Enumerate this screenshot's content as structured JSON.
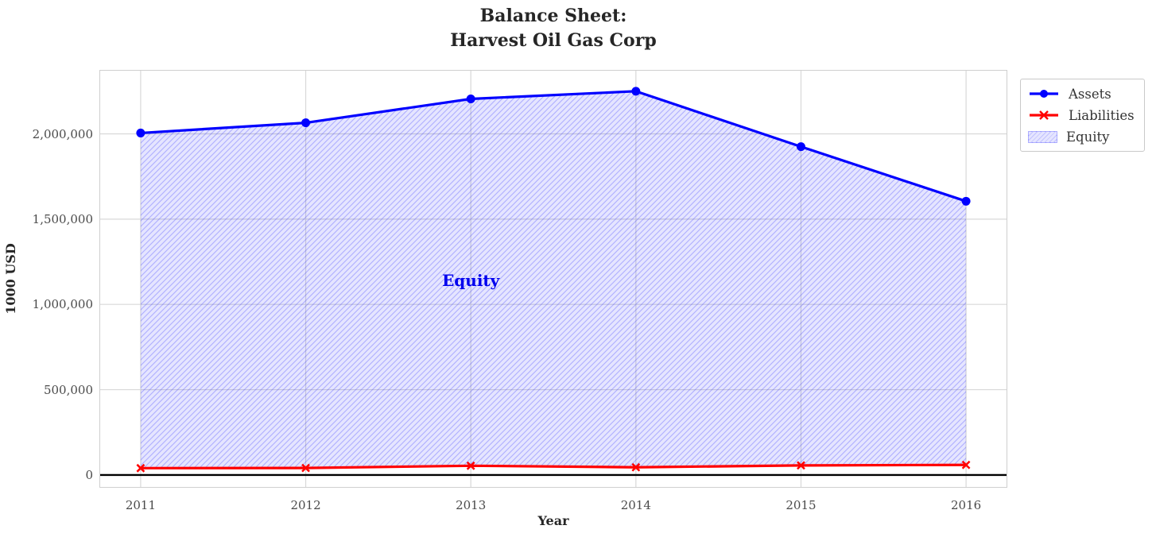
{
  "title": "Balance Sheet:\nHarvest Oil Gas Corp",
  "chart_data": {
    "type": "line",
    "title": "Balance Sheet:\nHarvest Oil Gas Corp",
    "xlabel": "Year",
    "ylabel": "1000 USD",
    "x": [
      2011,
      2012,
      2013,
      2014,
      2015,
      2016
    ],
    "series": [
      {
        "name": "Assets",
        "color": "#0000ff",
        "marker": "circle",
        "values": [
          2005000,
          2065000,
          2205000,
          2250000,
          1925000,
          1605000
        ]
      },
      {
        "name": "Liabilities",
        "color": "#ff0000",
        "marker": "x",
        "values": [
          40000,
          41000,
          54000,
          45000,
          56000,
          59000
        ]
      }
    ],
    "fill_between": {
      "label": "Equity",
      "upper": "Assets",
      "lower": "Liabilities",
      "hatch": "/",
      "fill_color": "rgba(0,0,255,0.10)",
      "hatch_color": "rgba(0,0,255,0.24)"
    },
    "annotation": {
      "text": "Equity",
      "x": 2013,
      "y": 1140000,
      "color": "#0000ee"
    },
    "x_ticks": [
      2011,
      2012,
      2013,
      2014,
      2015,
      2016
    ],
    "y_ticks": [
      0,
      500000,
      1000000,
      1500000,
      2000000
    ],
    "y_tick_labels": [
      "0",
      "500,000",
      "1,000,000",
      "1,500,000",
      "2,000,000"
    ],
    "xlim": [
      2010.75,
      2016.25
    ],
    "ylim": [
      -75000,
      2375000
    ],
    "grid": true,
    "grid_color": "#d8d8d8",
    "zero_line_color": "#000000",
    "frame_color": "#cfcfcf",
    "legend": {
      "position": "top-right-outside",
      "entries": [
        "Assets",
        "Liabilities",
        "Equity"
      ]
    }
  }
}
